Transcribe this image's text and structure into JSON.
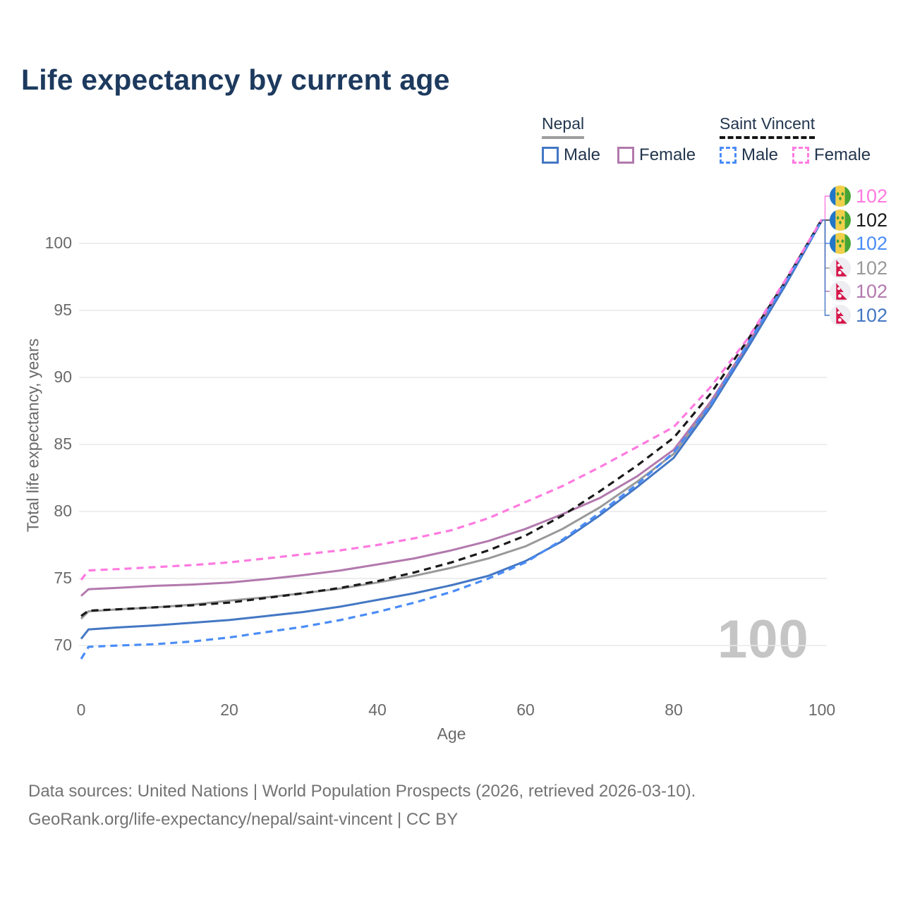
{
  "title": "Life expectancy by current age",
  "legend": {
    "groups": [
      {
        "label": "Nepal",
        "line_style": "solid",
        "underline_color": "#9e9e9e",
        "items": [
          {
            "label": "Male",
            "color": "#4477c4"
          },
          {
            "label": "Female",
            "color": "#b279ad"
          }
        ]
      },
      {
        "label": "Saint Vincent",
        "line_style": "dashed",
        "underline_color": "#141414",
        "items": [
          {
            "label": "Male",
            "color": "#4a8cf7"
          },
          {
            "label": "Female",
            "color": "#ff7ae0"
          }
        ]
      }
    ]
  },
  "watermark": "100",
  "end_labels": [
    {
      "value": "102",
      "color": "#ff7ae0",
      "flag": "saint-vincent",
      "series": "Saint Vincent Female"
    },
    {
      "value": "102",
      "color": "#1a1a1a",
      "flag": "saint-vincent",
      "series": "Saint Vincent Total"
    },
    {
      "value": "102",
      "color": "#4a8cf7",
      "flag": "saint-vincent",
      "series": "Saint Vincent Male"
    },
    {
      "value": "102",
      "color": "#999999",
      "flag": "nepal",
      "series": "Nepal Total"
    },
    {
      "value": "102",
      "color": "#b279ad",
      "flag": "nepal",
      "series": "Nepal Female"
    },
    {
      "value": "102",
      "color": "#4477c4",
      "flag": "nepal",
      "series": "Nepal Male"
    }
  ],
  "chart_data": {
    "type": "line",
    "title": "Life expectancy by current age",
    "xlabel": "Age",
    "ylabel": "Total life expectancy, years",
    "xlim": [
      0,
      100
    ],
    "ylim": [
      68.5,
      103
    ],
    "xticks": [
      0,
      20,
      40,
      60,
      80,
      100
    ],
    "yticks": [
      70,
      75,
      80,
      85,
      90,
      95,
      100
    ],
    "grid": true,
    "legend_position": "top-right",
    "x": [
      0,
      1,
      5,
      10,
      15,
      20,
      25,
      30,
      35,
      40,
      45,
      50,
      55,
      60,
      65,
      70,
      75,
      80,
      85,
      90,
      95,
      100
    ],
    "series": [
      {
        "name": "Nepal Total",
        "color": "#999999",
        "dashed": false,
        "values": [
          72.0,
          72.55,
          72.7,
          72.85,
          73.05,
          73.35,
          73.6,
          73.9,
          74.25,
          74.7,
          75.2,
          75.8,
          76.5,
          77.4,
          78.7,
          80.3,
          82.2,
          84.3,
          88.0,
          92.4,
          96.9,
          101.7
        ]
      },
      {
        "name": "Nepal Female",
        "color": "#b279ad",
        "dashed": false,
        "values": [
          73.7,
          74.2,
          74.3,
          74.45,
          74.55,
          74.7,
          74.95,
          75.25,
          75.6,
          76.05,
          76.5,
          77.1,
          77.8,
          78.7,
          79.8,
          81.0,
          82.6,
          84.6,
          88.2,
          92.5,
          97.0,
          101.7
        ]
      },
      {
        "name": "Nepal Male",
        "color": "#4477c4",
        "dashed": false,
        "values": [
          70.5,
          71.2,
          71.35,
          71.5,
          71.7,
          71.9,
          72.2,
          72.5,
          72.9,
          73.4,
          73.9,
          74.5,
          75.2,
          76.3,
          77.8,
          79.7,
          81.8,
          84.0,
          87.8,
          92.2,
          96.8,
          101.7
        ]
      },
      {
        "name": "Saint Vincent Total",
        "color": "#1a1a1a",
        "dashed": true,
        "values": [
          72.2,
          72.6,
          72.7,
          72.85,
          73.0,
          73.2,
          73.55,
          73.9,
          74.3,
          74.8,
          75.45,
          76.2,
          77.1,
          78.2,
          79.7,
          81.5,
          83.4,
          85.5,
          88.8,
          92.8,
          97.1,
          101.8
        ]
      },
      {
        "name": "Saint Vincent Male",
        "color": "#4a8cf7",
        "dashed": true,
        "values": [
          69.0,
          69.9,
          70.0,
          70.1,
          70.3,
          70.6,
          71.0,
          71.4,
          71.9,
          72.5,
          73.2,
          74.0,
          75.0,
          76.2,
          77.9,
          79.9,
          82.0,
          84.4,
          88.0,
          92.5,
          97.0,
          101.7
        ]
      },
      {
        "name": "Saint Vincent Female",
        "color": "#ff7ae0",
        "dashed": true,
        "values": [
          74.9,
          75.6,
          75.7,
          75.85,
          76.0,
          76.2,
          76.5,
          76.8,
          77.1,
          77.5,
          78.0,
          78.6,
          79.5,
          80.7,
          81.9,
          83.3,
          84.8,
          86.3,
          89.3,
          92.9,
          97.2,
          101.8
        ]
      }
    ]
  },
  "footer": {
    "line1": "Data sources: United Nations | World Population Prospects (2026, retrieved 2026-03-10).",
    "line2": "GeoRank.org/life-expectancy/nepal/saint-vincent | CC BY"
  }
}
